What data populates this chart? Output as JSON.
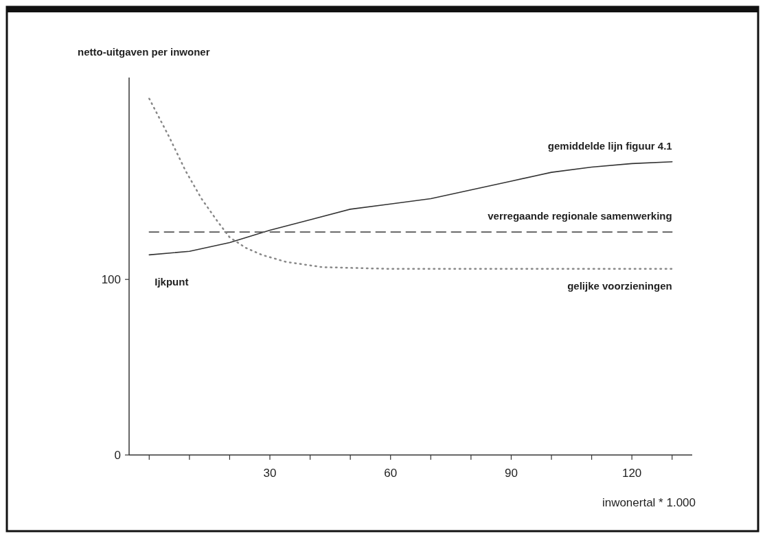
{
  "chart_data": {
    "type": "line",
    "ylabel": "netto-uitgaven per inwoner",
    "xlabel": "inwonertal * 1.000",
    "xlim": [
      -5,
      135
    ],
    "xticks": [
      {
        "value": 0,
        "label": null
      },
      {
        "value": 10,
        "label": null
      },
      {
        "value": 20,
        "label": null
      },
      30,
      {
        "value": 40,
        "label": null
      },
      {
        "value": 50,
        "label": null
      },
      60,
      {
        "value": 70,
        "label": null
      },
      {
        "value": 80,
        "label": null
      },
      90,
      {
        "value": 100,
        "label": null
      },
      {
        "value": 110,
        "label": null
      },
      120,
      {
        "value": 130,
        "label": null
      }
    ],
    "ylim": [
      0,
      215
    ],
    "yticks": [
      0,
      100
    ],
    "marker": "none",
    "annotations": [
      {
        "text": "Ijkpunt",
        "x": 0,
        "y": 114
      }
    ],
    "series": [
      {
        "name": "gemiddelde lijn figuur 4.1",
        "color": "#333333",
        "line_style": "solid",
        "x": [
          0,
          10,
          20,
          30,
          40,
          50,
          60,
          70,
          80,
          90,
          100,
          110,
          120,
          130
        ],
        "values": [
          114,
          116,
          121,
          128,
          134,
          140,
          143,
          146,
          151,
          156,
          161,
          164,
          166,
          167
        ]
      },
      {
        "name": "verregaande regionale samenwerking",
        "color": "#555555",
        "line_style": "dashed",
        "x": [
          0,
          130
        ],
        "values": [
          127,
          127
        ]
      },
      {
        "name": "gelijke voorzieningen",
        "color": "#888888",
        "line_style": "dotted",
        "x": [
          0,
          5,
          9,
          13,
          17,
          20,
          24,
          28,
          34,
          43,
          60,
          90,
          130
        ],
        "values": [
          203,
          181,
          162,
          146,
          133,
          124,
          118,
          114,
          110,
          107,
          106,
          106,
          106
        ]
      }
    ]
  }
}
